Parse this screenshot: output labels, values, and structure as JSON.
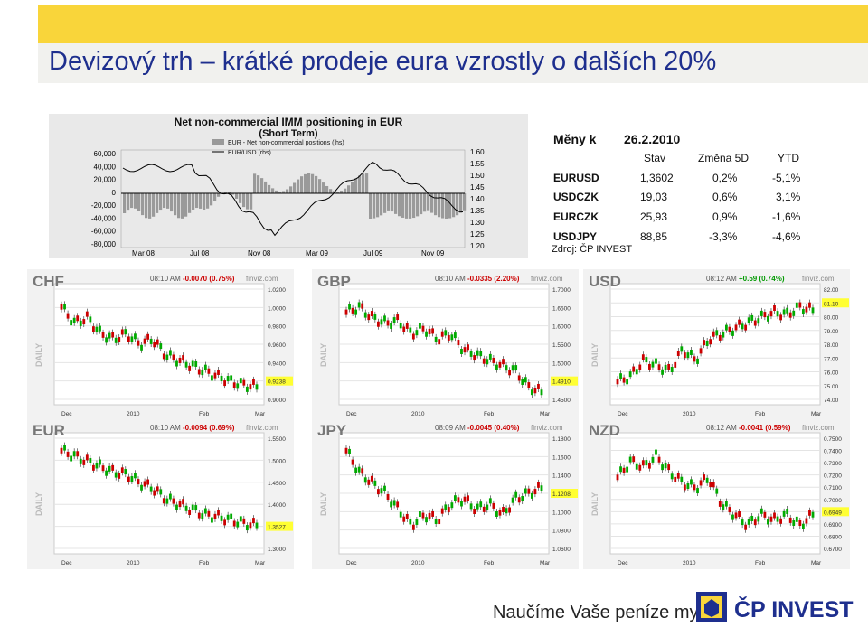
{
  "slide": {
    "title": "Devizový trh – krátké prodeje eura vzrostly o dalších 20%",
    "slogan": "Naučíme Vaše peníze myslet",
    "brand": "ČP INVEST"
  },
  "top_chart": {
    "title": "Net non-commercial IMM positioning in EUR",
    "subtitle": "(Short Term)",
    "legend": [
      "EUR - Net non-commercial positions (lhs)",
      "EUR/USD (rhs)"
    ],
    "left_ticks": [
      "60,000",
      "40,000",
      "20,000",
      "0",
      "-20,000",
      "-40,000",
      "-60,000",
      "-80,000"
    ],
    "right_ticks": [
      "1.60",
      "1.55",
      "1.50",
      "1.45",
      "1.40",
      "1.35",
      "1.30",
      "1.25",
      "1.20"
    ],
    "x_ticks": [
      "Mar 08",
      "Jul 08",
      "Nov 08",
      "Mar 09",
      "Jul 09",
      "Nov 09"
    ]
  },
  "table": {
    "header_label": "Měny k",
    "date": "26.2.2010",
    "columns": [
      "Stav",
      "Změna 5D",
      "YTD"
    ],
    "rows": [
      {
        "pair": "EURUSD",
        "stav": "1,3602",
        "zmena": "0,2%",
        "ytd": "-5,1%"
      },
      {
        "pair": "USDCZK",
        "stav": "19,03",
        "zmena": "0,6%",
        "ytd": "3,1%"
      },
      {
        "pair": "EURCZK",
        "stav": "25,93",
        "zmena": "0,9%",
        "ytd": "-1,6%"
      },
      {
        "pair": "USDJPY",
        "stav": "88,85",
        "zmena": "-3,3%",
        "ytd": "-4,6%"
      }
    ],
    "source": "Zdroj: ČP INVEST"
  },
  "panels": [
    {
      "name": "CHF",
      "time": "08:10 AM",
      "change": "-0.0070 (0.75%)",
      "change_color": "#cc0000",
      "finviz": "finviz.com",
      "ticks": [
        "1.0200",
        "1.0000",
        "0.9800",
        "0.9600",
        "0.9400",
        "0.9238",
        "0.9000"
      ],
      "last": "0.9238",
      "x_ticks": [
        "Dec",
        "2010",
        "Feb",
        "Mar"
      ],
      "daily": "DAILY"
    },
    {
      "name": "GBP",
      "time": "08:10 AM",
      "change": "-0.0335 (2.20%)",
      "change_color": "#cc0000",
      "finviz": "finviz.com",
      "ticks": [
        "1.7000",
        "1.6500",
        "1.6000",
        "1.5500",
        "1.5000",
        "1.4910",
        "1.4500"
      ],
      "last": "1.4910",
      "x_ticks": [
        "Dec",
        "2010",
        "Feb",
        "Mar"
      ],
      "daily": "DAILY"
    },
    {
      "name": "USD",
      "time": "08:12 AM",
      "change": "+0.59 (0.74%)",
      "change_color": "#009900",
      "finviz": "finviz.com",
      "ticks": [
        "82.00",
        "81.10",
        "80.00",
        "79.00",
        "78.00",
        "77.00",
        "76.00",
        "75.00",
        "74.00"
      ],
      "last": "81.10",
      "x_ticks": [
        "Dec",
        "2010",
        "Feb",
        "Mar"
      ],
      "daily": "DAILY"
    },
    {
      "name": "EUR",
      "time": "08:10 AM",
      "change": "-0.0094 (0.69%)",
      "change_color": "#cc0000",
      "finviz": "finviz.com",
      "ticks": [
        "1.5500",
        "1.5000",
        "1.4500",
        "1.4000",
        "1.3527",
        "1.3000"
      ],
      "last": "1.3527",
      "x_ticks": [
        "Dec",
        "2010",
        "Feb",
        "Mar"
      ],
      "daily": "DAILY"
    },
    {
      "name": "JPY",
      "time": "08:09 AM",
      "change": "-0.0045 (0.40%)",
      "change_color": "#cc0000",
      "finviz": "finviz.com",
      "ticks": [
        "1.1800",
        "1.1600",
        "1.1400",
        "1.1208",
        "1.1000",
        "1.0800",
        "1.0600"
      ],
      "last": "1.1208",
      "x_ticks": [
        "Dec",
        "2010",
        "Feb",
        "Mar"
      ],
      "daily": "DAILY"
    },
    {
      "name": "NZD",
      "time": "08:12 AM",
      "change": "-0.0041 (0.59%)",
      "change_color": "#cc0000",
      "finviz": "finviz.com",
      "ticks": [
        "0.7500",
        "0.7400",
        "0.7300",
        "0.7200",
        "0.7100",
        "0.7000",
        "0.6949",
        "0.6900",
        "0.6800",
        "0.6700"
      ],
      "last": "0.6949",
      "x_ticks": [
        "Dec",
        "2010",
        "Feb",
        "Mar"
      ],
      "daily": "DAILY"
    }
  ],
  "colors": {
    "title": "#1e2f8e",
    "stripe": "#f9d53a",
    "up": "#00aa00",
    "down": "#cc0000",
    "last_bg": "#ffff33"
  }
}
